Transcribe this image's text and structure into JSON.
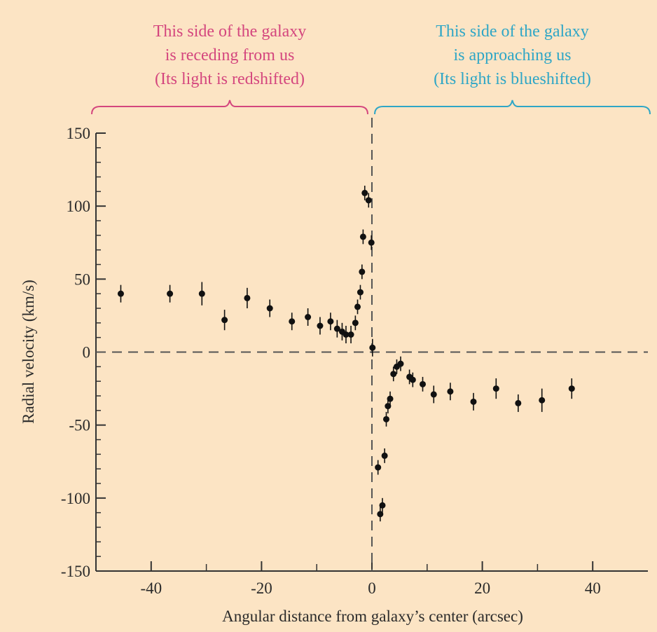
{
  "chart_data": {
    "type": "errorbar-scatter",
    "xlabel": "Angular distance from galaxy’s center (arcsec)",
    "ylabel": "Radial velocity (km/s)",
    "annotations": [
      {
        "lines": [
          "This side of the galaxy",
          "is receding from us",
          "(Its light is redshifted)"
        ],
        "color": "#d4467e"
      },
      {
        "lines": [
          "This side of the galaxy",
          "is approaching us",
          "(Its light is blueshifted)"
        ],
        "color": "#2ea6c6"
      }
    ],
    "xlim": [
      -50,
      50
    ],
    "ylim": [
      -150,
      150
    ],
    "xticks": [
      -40,
      -20,
      0,
      20,
      40
    ],
    "xminorticks": [
      -30,
      -10,
      10,
      30
    ],
    "yticks": [
      -150,
      -100,
      -50,
      0,
      50,
      100,
      150
    ],
    "yminorticks": [
      -140,
      -130,
      -120,
      -110,
      -90,
      -80,
      -70,
      -60,
      -40,
      -30,
      -20,
      -10,
      10,
      20,
      30,
      40,
      60,
      70,
      80,
      90,
      110,
      120,
      130,
      140
    ],
    "hlines": [
      0
    ],
    "vlines": [
      0
    ],
    "series": [
      {
        "color": "#111111",
        "x": [
          -45.5,
          -36.6,
          -30.8,
          -26.7,
          -22.6,
          -18.5,
          -14.5,
          -11.6,
          -9.4,
          -7.5,
          -6.3,
          -5.4,
          -4.7,
          -3.8,
          -3,
          -2.6,
          -2.1,
          -1.8,
          -1.6,
          -1.3,
          -0.6,
          -0.1,
          0.1,
          1.1,
          1.5,
          1.9,
          2.3,
          2.6,
          2.9,
          3.3,
          3.9,
          4.5,
          5.2,
          6.8,
          7.4,
          9.2,
          11.2,
          14.2,
          18.4,
          22.5,
          26.5,
          30.8,
          36.2
        ],
        "values": [
          40,
          40,
          40,
          22,
          37,
          30,
          21,
          24,
          18,
          21,
          16,
          14,
          12,
          12,
          20,
          31,
          41,
          55,
          79,
          109,
          104,
          75,
          3,
          -79,
          -111,
          -105,
          -71,
          -46,
          -37,
          -32,
          -15,
          -10,
          -8,
          -17,
          -19,
          -22,
          -29,
          -27,
          -34,
          -25,
          -35,
          -33,
          -25
        ],
        "errors": [
          6,
          6,
          8,
          7,
          7,
          6,
          6,
          6,
          6,
          6,
          6,
          6,
          6,
          6,
          5,
          5,
          5,
          5,
          5,
          5,
          5,
          5,
          6,
          5,
          5,
          5,
          5,
          5,
          5,
          5,
          5,
          5,
          5,
          5,
          5,
          5,
          6,
          6,
          6,
          7,
          6,
          8,
          7
        ]
      }
    ]
  }
}
